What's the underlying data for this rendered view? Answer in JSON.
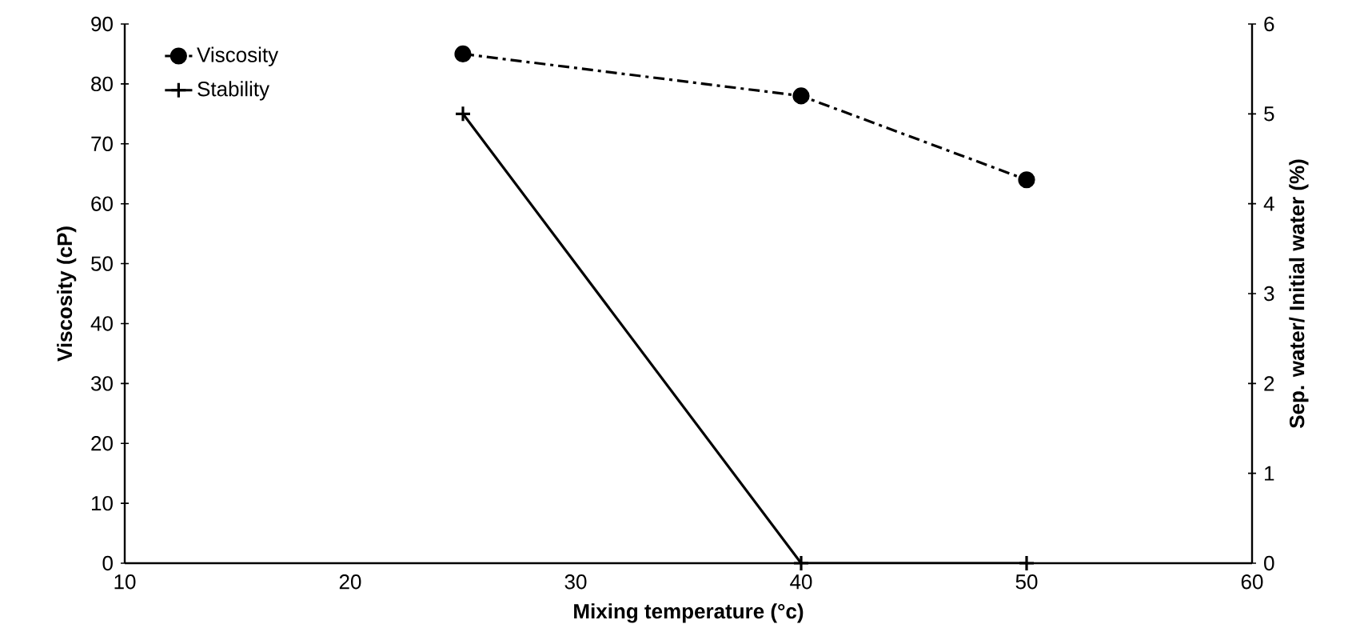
{
  "chart_data": {
    "type": "line",
    "xlabel": "Mixing temperature (°c)",
    "ylabel": "Viscosity (cP)",
    "y2label": "Sep. water/ Initial water (%)",
    "x": [
      25,
      40,
      50
    ],
    "series": [
      {
        "name": "Viscosity",
        "color": "#000000",
        "values": [
          85,
          78,
          64
        ],
        "marker": "circle",
        "line_style": "dashdot"
      },
      {
        "name": "Stability",
        "color": "#000000",
        "values": [
          5,
          0,
          0
        ],
        "marker": "cross",
        "line_style": "solid",
        "axis": "y2"
      }
    ],
    "xlim": [
      10,
      60
    ],
    "xticks": [
      10,
      20,
      30,
      40,
      50,
      60
    ],
    "ylim": [
      0,
      90
    ],
    "yticks": [
      0,
      10,
      20,
      30,
      40,
      50,
      60,
      70,
      80,
      90
    ],
    "y2lim": [
      0,
      6
    ],
    "y2ticks": [
      0,
      1,
      2,
      3,
      4,
      5,
      6
    ],
    "grid": false,
    "legend": "top left"
  }
}
